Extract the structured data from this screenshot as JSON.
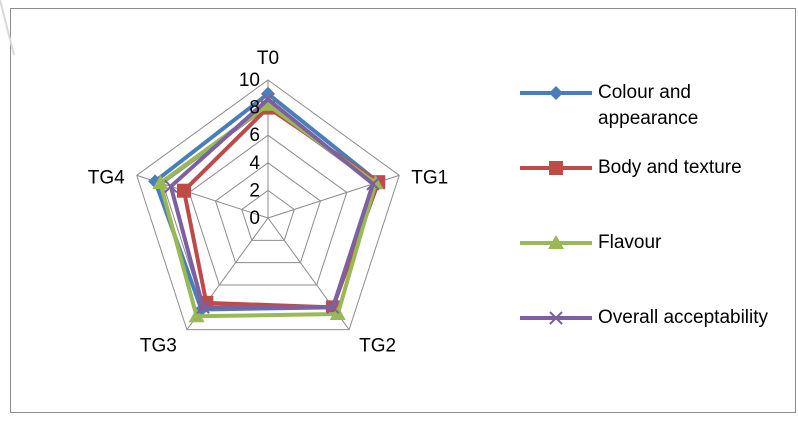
{
  "chart_data": {
    "type": "radar",
    "categories": [
      "T0",
      "TG1",
      "TG2",
      "TG3",
      "TG4"
    ],
    "rlim": [
      0,
      10
    ],
    "r_ticks": [
      "0",
      "2",
      "4",
      "6",
      "8",
      "10"
    ],
    "grid": true,
    "legend_position": "right",
    "series": [
      {
        "name": "Colour and appearance",
        "color": "#4a7ebb",
        "marker": "diamond",
        "values": [
          9.0,
          8.4,
          8.0,
          8.2,
          8.6
        ]
      },
      {
        "name": "Body and texture",
        "color": "#be4b48",
        "marker": "square",
        "values": [
          8.0,
          8.4,
          8.0,
          7.6,
          6.4
        ]
      },
      {
        "name": "Flavour",
        "color": "#98b954",
        "marker": "triangle",
        "values": [
          8.2,
          8.2,
          8.6,
          8.8,
          8.2
        ]
      },
      {
        "name": "Overall acceptability",
        "color": "#7d60a0",
        "marker": "x",
        "values": [
          8.6,
          8.0,
          8.0,
          8.0,
          7.4
        ]
      }
    ]
  }
}
